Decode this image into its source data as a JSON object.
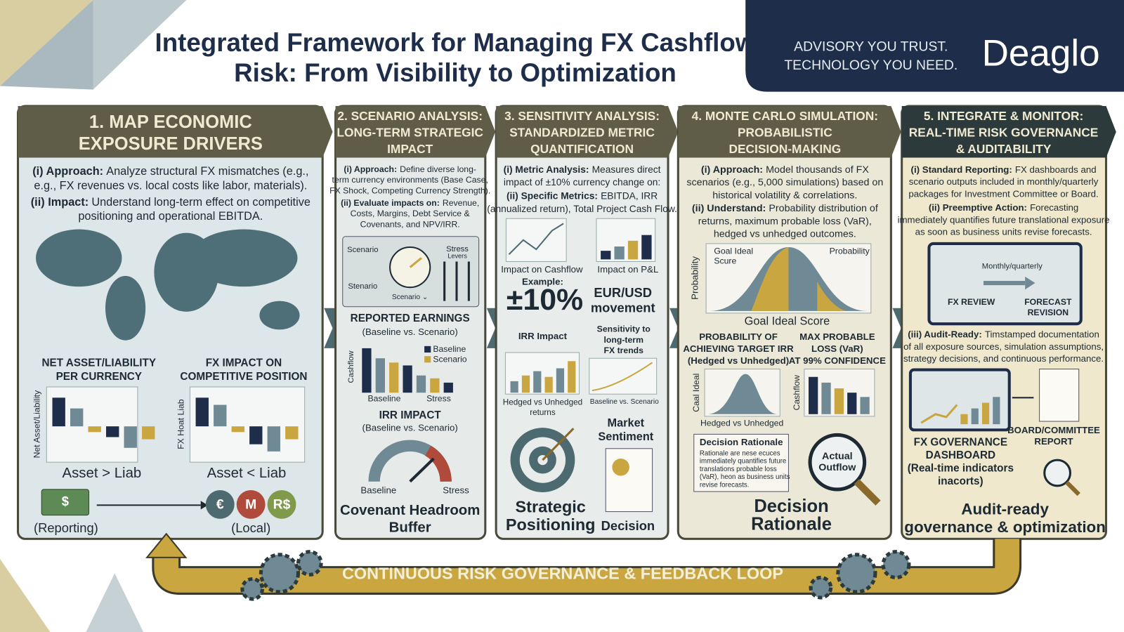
{
  "header": {
    "title_lines": [
      "Integrated Framework for Managing FX Cashflow",
      "Risk: From Visibility to Optimization"
    ],
    "tagline": [
      "ADVISORY YOU TRUST.",
      "TECHNOLOGY YOU NEED."
    ],
    "brand": "Deaglo"
  },
  "panels": [
    {
      "heading": [
        "1. MAP ECONOMIC",
        "EXPOSURE DRIVERS"
      ],
      "items": [
        {
          "label": "(i) Approach:",
          "lines": [
            "Analyze structural FX mismatches (e.g.,",
            "e.g., FX revenues vs. local costs like labor, materials)."
          ]
        },
        {
          "label": "(ii) Impact:",
          "lines": [
            "Understand long-term effect on competitive",
            "positioning and operational EBITDA."
          ]
        }
      ],
      "charts": [
        {
          "title": [
            "NET ASSET/LIABILITY",
            "PER CURRENCY"
          ],
          "axis": "Net Asset/Liability",
          "caption": "Asset  > Liab"
        },
        {
          "title": [
            "FX IMPACT ON",
            "COMPETITIVE POSITION"
          ],
          "axis": "FX Hoat Liab",
          "caption": "Asset < Liab"
        }
      ],
      "money": "$",
      "currencies": [
        "€",
        "M",
        "R$"
      ],
      "reporting": "(Reporting)",
      "local": "(Local)"
    },
    {
      "heading": [
        "2. SCENARIO ANALYSIS:",
        "LONG-TERM STRATEGIC",
        "IMPACT"
      ],
      "items": [
        {
          "label": "(i) Approach:",
          "lines": [
            "Define diverse long-",
            "term currency environments (Base Case,",
            "FX Shock, Competing Currency Strength)."
          ]
        },
        {
          "label": "(ii) Evaluate impacts on:",
          "lines": [
            "Revenue,",
            "Costs, Margins, Debt Service &",
            "Covenants, and NPV/IRR."
          ]
        }
      ],
      "widgets": [
        "Scenario",
        "Stenario",
        "Scenario ⌄",
        "Stress",
        "Levers"
      ],
      "earnings": {
        "title": "REPORTED EARNINGS",
        "subtitle": "(Baseline vs. Scenario)",
        "axis": "Cashflow",
        "legend": [
          "Baseline",
          "Scenario"
        ],
        "x": [
          "Baseline",
          "Stress"
        ]
      },
      "irr": {
        "title": "IRR IMPACT",
        "subtitle": "(Baseline vs. Scenario)",
        "ends": [
          "Baseline",
          "Stress"
        ]
      },
      "footer": [
        "Covenant Headroom",
        "Buffer"
      ]
    },
    {
      "heading": [
        "3. SENSITIVITY ANALYSIS:",
        "STANDARDIZED METRIC",
        "QUANTIFICATION"
      ],
      "items": [
        {
          "label": "(i) Metric Analysis:",
          "lines": [
            "Measures direct",
            "impact of ±10% currency change on:"
          ]
        },
        {
          "label": "(ii) Specific Metrics:",
          "lines": [
            "EBITDA, IRR",
            "(annualized return), Total Project Cash Flow."
          ]
        }
      ],
      "chart_labels": [
        "Impact on Cashflow",
        "Impact on P&L"
      ],
      "example": "Example:",
      "big": "±10%",
      "movement": [
        "EUR/USD",
        "movement"
      ],
      "irr_impact": "IRR Impact",
      "trends": [
        "Sensitivity to",
        "long-term",
        "FX trends"
      ],
      "hedged": [
        "Hedged vs Unhedged",
        "returns"
      ],
      "baseline_scenario": "Baseline vs. Scenario",
      "market": [
        "Market",
        "Sentiment"
      ],
      "footer": [
        "Strategic",
        "Positioning"
      ],
      "decision": "Decision"
    },
    {
      "heading": [
        "4. MONTE CARLO SIMULATION:",
        "PROBABILISTIC",
        "DECISION-MAKING"
      ],
      "items": [
        {
          "label": "(i) Approach:",
          "lines": [
            "Model thousands of FX",
            "scenarios (e.g., 5,000 simulations) based on",
            "historical volatility & correlations."
          ]
        },
        {
          "label": "(ii) Understand:",
          "lines": [
            "Probability distribution of",
            "returns, maximum probable loss (VaR),",
            "hedged vs unhedged outcomes."
          ]
        }
      ],
      "dist": {
        "axis": "Probability",
        "goal": [
          "Goal Ideal",
          "Scure"
        ],
        "prob": "Probability",
        "xlabel": "Goal Ideal Score"
      },
      "prob_target": [
        "PROBABILITY OF",
        "ACHIEVING TARGET IRR",
        "(Hedged vs Unhedged)"
      ],
      "max_loss": [
        "MAX PROBABLE",
        "LOSS (VaR)",
        "AT 99% CONFIDENCE"
      ],
      "axes": [
        "Caal Ideal",
        "Cashflow"
      ],
      "hedged": "Hedged vs Unhedged",
      "rationale": {
        "title": "Decision Rationale",
        "lines": [
          "Rationale are nese ecuces",
          "immediately quantifies future",
          "translations probable loss",
          "(VaR), heon as business units",
          "revise forecasts."
        ]
      },
      "outflow": [
        "Actual",
        "Outflow"
      ],
      "footer": [
        "Decision",
        "Rationale"
      ]
    },
    {
      "heading": [
        "5. INTEGRATE & MONITOR:",
        "REAL-TIME RISK GOVERNANCE",
        "& AUDITABILITY"
      ],
      "items": [
        {
          "label": "(i) Standard Reporting:",
          "lines": [
            "FX dashboards and",
            "scenario outputs included in monthly/quarterly",
            "packages for Investment Committee or Board."
          ]
        },
        {
          "label": "(ii) Preemptive Action:",
          "lines": [
            "Forecasting",
            "immediately quantifies future translational exposure",
            "as soon as business units revise forecasts."
          ]
        },
        {
          "label": "(iii) Audit-Ready:",
          "lines": [
            "Timstamped documentation",
            "of all exposure sources, simulation assumptions,",
            "strategy decisions, and continuous performance."
          ]
        }
      ],
      "calendar": {
        "title": "Monthly/quarterly",
        "left": "FX REVIEW",
        "right": [
          "FORECAST",
          "REVISION"
        ]
      },
      "dashboard": [
        "FX GOVERNANCE",
        "DASHBOARD",
        "(Real-time indicators",
        "inacorts)"
      ],
      "report": [
        "BOARD/COMMITTEE",
        "REPORT"
      ],
      "footer": [
        "Audit-ready",
        "governance & optimization"
      ]
    }
  ],
  "footer": {
    "loop": "CONTINUOUS RISK GOVERNANCE & FEEDBACK LOOP"
  }
}
